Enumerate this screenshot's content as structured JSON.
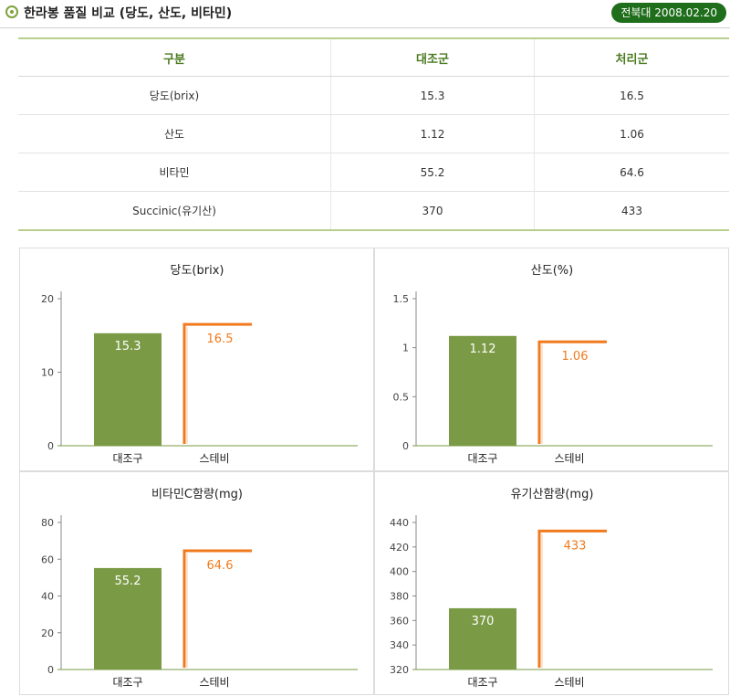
{
  "header": {
    "title": "한라봉 품질 비교 (당도, 산도, 비타민)",
    "date_badge": "전북대 2008.02.20"
  },
  "table": {
    "headers": [
      "구분",
      "대조군",
      "처리군"
    ],
    "rows": [
      [
        "당도(brix)",
        "15.3",
        "16.5"
      ],
      [
        "산도",
        "1.12",
        "1.06"
      ],
      [
        "비타민",
        "55.2",
        "64.6"
      ],
      [
        "Succinic(유기산)",
        "370",
        "433"
      ]
    ]
  },
  "colors": {
    "control": "#7a9a45",
    "treated": "#f07a1d",
    "accent": "#4a7a1f",
    "badge": "#1f6e1b"
  },
  "chart_data": [
    {
      "type": "bar",
      "title": "당도(brix)",
      "categories": [
        "대조구",
        "스테비"
      ],
      "values": [
        15.3,
        16.5
      ],
      "labels": [
        "15.3",
        "16.5"
      ],
      "ylim": [
        0,
        20
      ],
      "ticks": [
        0,
        10,
        20
      ],
      "tick_labels": [
        "0",
        "10",
        "20"
      ]
    },
    {
      "type": "bar",
      "title": "산도(%)",
      "categories": [
        "대조구",
        "스테비"
      ],
      "values": [
        1.12,
        1.06
      ],
      "labels": [
        "1.12",
        "1.06"
      ],
      "ylim": [
        0,
        1.5
      ],
      "ticks": [
        0,
        0.5,
        1,
        1.5
      ],
      "tick_labels": [
        "0",
        "0.5",
        "1",
        "1.5"
      ]
    },
    {
      "type": "bar",
      "title": "비타민C함량(mg)",
      "categories": [
        "대조구",
        "스테비"
      ],
      "values": [
        55.2,
        64.6
      ],
      "labels": [
        "55.2",
        "64.6"
      ],
      "ylim": [
        0,
        80
      ],
      "ticks": [
        0,
        20,
        40,
        60,
        80
      ],
      "tick_labels": [
        "0",
        "20",
        "40",
        "60",
        "80"
      ]
    },
    {
      "type": "bar",
      "title": "유기산함량(mg)",
      "categories": [
        "대조구",
        "스테비"
      ],
      "values": [
        370,
        433
      ],
      "labels": [
        "370",
        "433"
      ],
      "ylim": [
        320,
        440
      ],
      "ticks": [
        320,
        340,
        360,
        380,
        400,
        420,
        440
      ],
      "tick_labels": [
        "320",
        "340",
        "360",
        "380",
        "400",
        "420",
        "440"
      ]
    }
  ]
}
